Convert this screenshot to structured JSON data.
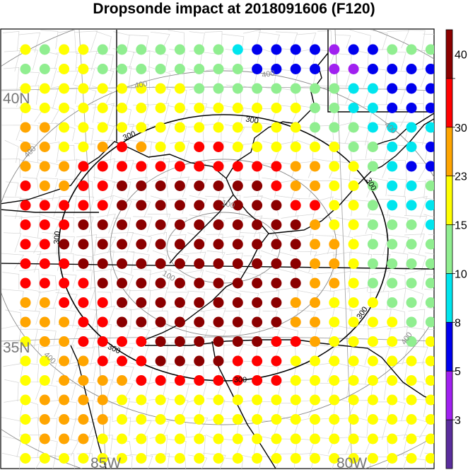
{
  "title": "Dropsonde impact at 2018091606 (F120)",
  "map": {
    "lat_labels": [
      "40N",
      "35N"
    ],
    "lon_labels": [
      "85W",
      "80W"
    ],
    "contour_labels_black": [
      "300",
      "300",
      "300",
      "300",
      "300",
      "300",
      "300"
    ],
    "contour_labels_gray": [
      "100",
      "100",
      "400",
      "400",
      "400",
      "400",
      "400",
      "400"
    ]
  },
  "colorbar": {
    "tick_labels": [
      "40",
      "30",
      "23",
      "15",
      "10",
      "8",
      "5",
      "3"
    ],
    "levels": [
      0,
      3,
      5,
      8,
      10,
      15,
      23,
      30,
      40
    ],
    "colors": [
      "#5a2d9c",
      "#a020f0",
      "#0000ee",
      "#00e5ee",
      "#90ee90",
      "#ffff00",
      "#ffa500",
      "#ff0000",
      "#8b0000"
    ]
  },
  "chart_data": {
    "type": "dot grid",
    "legend": "right colorbar",
    "columns": 22,
    "rows": 22,
    "grid": [
      "YGYYGGGGGGGCBBBBPBBGGG",
      "GGYYGGGGGGGGBBBBPPBBBB",
      "YYYYYYYYYGGGGGGGGCCBBB",
      "YYYYYYYYYYYYYYYGGCCBBB",
      "OOYYYYYYYYYYYYYGGGCCCC",
      "OOYYOROYYRRYYYYYYGGCCB",
      "OOORRRRRRRRRRROOYYGCBB",
      "ROORRDDDDDDDDROOYYGCCG",
      "RRRRRDDDDDDDDDRRYYGCCC",
      "RRRDDDDDDDDDDDDOYYGGGC",
      "RRDDDDDDDDDDDDDOOYGGGG",
      "RRRDDDDDDDDDDDDOOYGGGG",
      "RRRRDDDDDDDDDDDOOYGGGG",
      "OORRRDDDDDDDDDOOYYYGGG",
      "OOORRDDDDDDDDDOOYYYYGG",
      "YOORRRRDDDDDDRROYYYYGY",
      "YYOORRRDDDDRRRYYYYYYYY",
      "YYOOOORRRRRRRRYYYYYYYY",
      "YOOOOYYYYYYYYYYYYYYYYY",
      "YOOOOYYYYYYYYYYYYYYYYY",
      "YOOOYYYYYYYYYYYYYYYYYY",
      "YYYYYYYYYYYYYYYYYYYYYY"
    ]
  }
}
